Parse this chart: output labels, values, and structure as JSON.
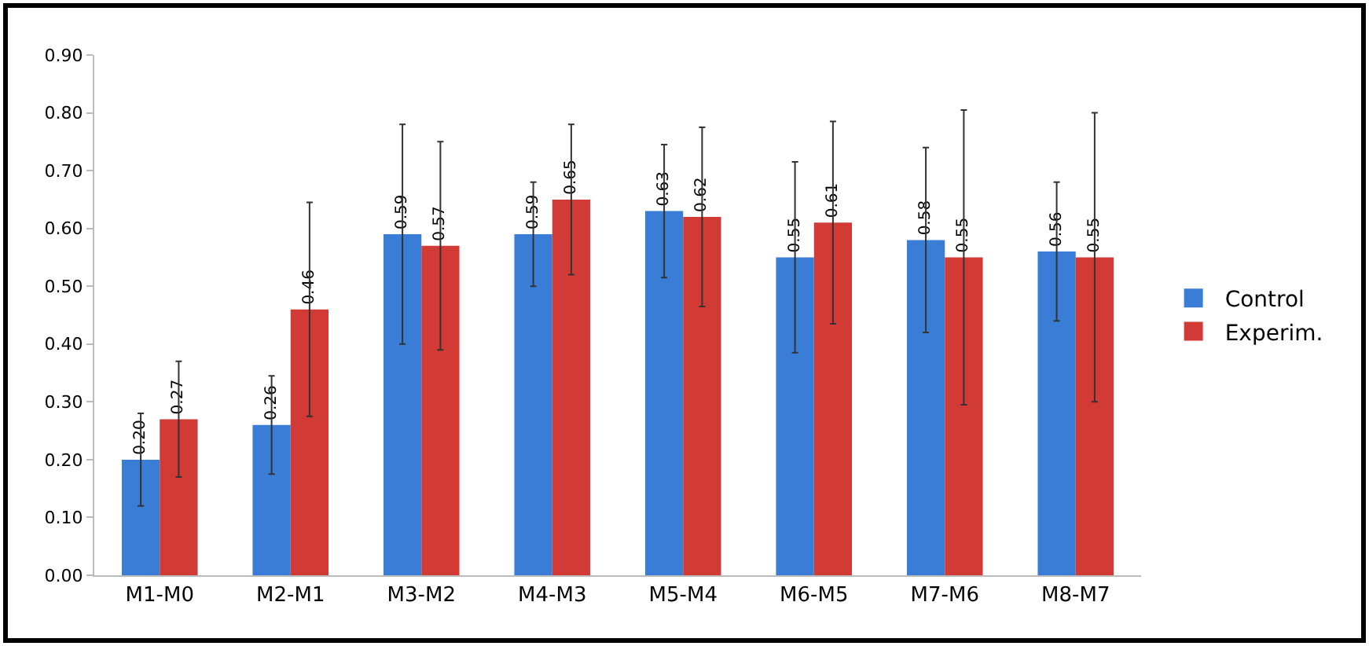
{
  "chart_data": {
    "type": "bar",
    "categories": [
      "M1-M0",
      "M2-M1",
      "M3-M2",
      "M4-M3",
      "M5-M4",
      "M6-M5",
      "M7-M6",
      "M8-M7"
    ],
    "series": [
      {
        "name": "Control",
        "color": "#3a7dd6",
        "values": [
          0.2,
          0.26,
          0.59,
          0.59,
          0.63,
          0.55,
          0.58,
          0.56
        ],
        "errors": [
          0.08,
          0.085,
          0.19,
          0.09,
          0.115,
          0.165,
          0.16,
          0.12
        ],
        "value_labels": [
          "0.20",
          "0.26",
          "0.59",
          "0.59",
          "0.63",
          "0.55",
          "0.58",
          "0.56"
        ]
      },
      {
        "name": "Experim.",
        "color": "#d23a35",
        "values": [
          0.27,
          0.46,
          0.57,
          0.65,
          0.62,
          0.61,
          0.55,
          0.55
        ],
        "errors": [
          0.1,
          0.185,
          0.18,
          0.13,
          0.155,
          0.175,
          0.255,
          0.25
        ],
        "value_labels": [
          "0.27",
          "0.46",
          "0.57",
          "0.65",
          "0.62",
          "0.61",
          "0.55",
          "0.55"
        ]
      }
    ],
    "ylim": [
      0,
      0.9
    ],
    "yticks": [
      {
        "value": 0,
        "label": "0.00"
      },
      {
        "value": 0.1,
        "label": "0.10"
      },
      {
        "value": 0.2,
        "label": "0.20"
      },
      {
        "value": 0.3,
        "label": "0.30"
      },
      {
        "value": 0.4,
        "label": "0.40"
      },
      {
        "value": 0.5,
        "label": "0.50"
      },
      {
        "value": 0.6,
        "label": "0.60"
      },
      {
        "value": 0.7,
        "label": "0.70"
      },
      {
        "value": 0.8,
        "label": "0.80"
      },
      {
        "value": 0.9,
        "label": "0.90"
      }
    ],
    "grid": false,
    "legend": "right"
  }
}
